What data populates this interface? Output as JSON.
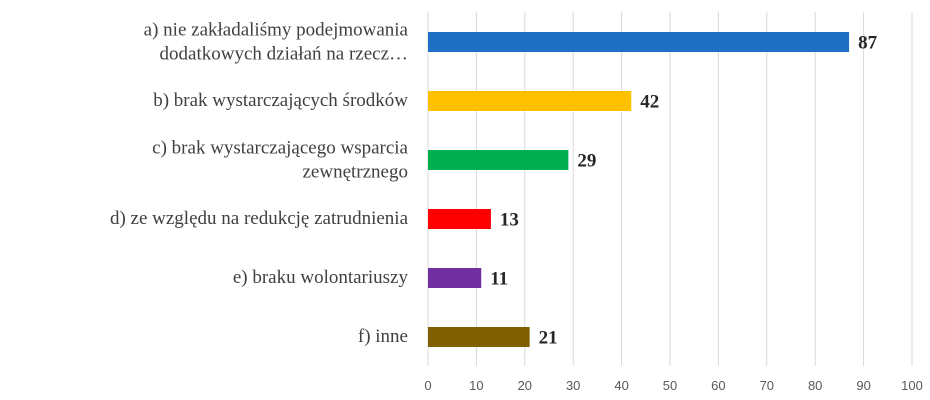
{
  "chart_data": {
    "type": "bar",
    "orientation": "horizontal",
    "categories": [
      "a) nie zakładaliśmy podejmowania\ndodatkowych działań na rzecz…",
      "b) brak wystarczających środków",
      "c) brak wystarczającego wsparcia\nzewnętrznego",
      "d) ze względu na redukcję zatrudnienia",
      "e) braku wolontariuszy",
      "f) inne"
    ],
    "values": [
      87,
      42,
      29,
      13,
      11,
      21
    ],
    "colors": [
      "#1f6fc5",
      "#ffc000",
      "#00b050",
      "#ff0000",
      "#7030a0",
      "#7f6000"
    ],
    "xlim": [
      0,
      100
    ],
    "xticks": [
      0,
      10,
      20,
      30,
      40,
      50,
      60,
      70,
      80,
      90,
      100
    ],
    "grid": true
  }
}
